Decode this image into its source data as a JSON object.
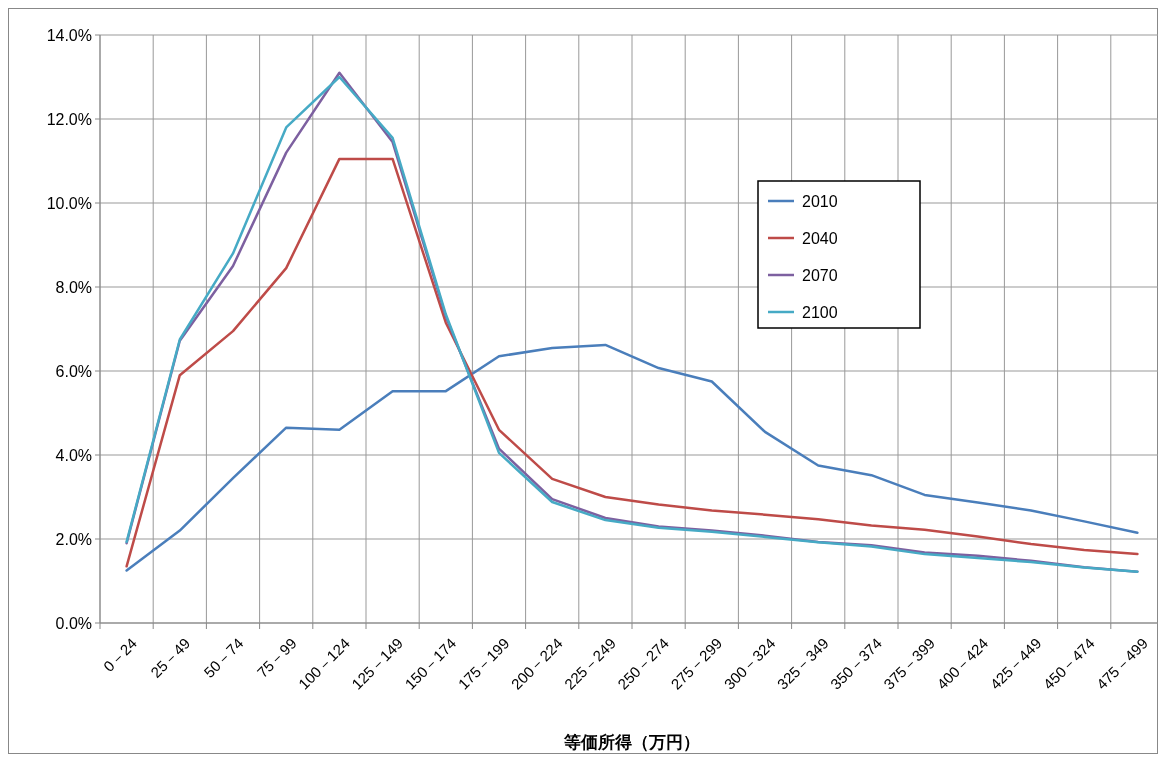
{
  "chart_data": {
    "type": "line",
    "xlabel": "等価所得（万円）",
    "categories": [
      "0－24",
      "25－49",
      "50－74",
      "75－99",
      "100－124",
      "125－149",
      "150－174",
      "175－199",
      "200－224",
      "225－249",
      "250－274",
      "275－299",
      "300－324",
      "325－349",
      "350－374",
      "375－399",
      "400－424",
      "425－449",
      "450－474",
      "475－499"
    ],
    "series": [
      {
        "name": "2010",
        "color": "#4a7ebb",
        "values": [
          1.25,
          2.2,
          3.45,
          4.65,
          4.6,
          5.52,
          5.52,
          6.35,
          6.55,
          6.62,
          6.07,
          5.75,
          4.55,
          3.75,
          3.52,
          3.05,
          2.87,
          2.68,
          2.42,
          2.15
        ]
      },
      {
        "name": "2040",
        "color": "#be4b48",
        "values": [
          1.35,
          5.9,
          6.95,
          8.45,
          11.05,
          11.05,
          7.15,
          4.6,
          3.43,
          3.0,
          2.82,
          2.68,
          2.58,
          2.47,
          2.32,
          2.22,
          2.06,
          1.88,
          1.74,
          1.64
        ]
      },
      {
        "name": "2070",
        "color": "#7d60a0",
        "values": [
          1.9,
          6.72,
          8.5,
          11.2,
          13.1,
          11.45,
          7.3,
          4.15,
          2.95,
          2.5,
          2.3,
          2.2,
          2.08,
          1.93,
          1.85,
          1.68,
          1.6,
          1.48,
          1.33,
          1.22
        ]
      },
      {
        "name": "2100",
        "color": "#46aac5",
        "values": [
          1.93,
          6.75,
          8.8,
          11.8,
          13.0,
          11.55,
          7.35,
          4.05,
          2.88,
          2.45,
          2.27,
          2.17,
          2.05,
          1.92,
          1.82,
          1.64,
          1.55,
          1.45,
          1.32,
          1.22
        ]
      }
    ],
    "ylim": [
      0,
      14
    ],
    "yticks": [
      {
        "value": 0,
        "label": "0.0%"
      },
      {
        "value": 2,
        "label": "2.0%"
      },
      {
        "value": 4,
        "label": "4.0%"
      },
      {
        "value": 6,
        "label": "6.0%"
      },
      {
        "value": 8,
        "label": "8.0%"
      },
      {
        "value": 10,
        "label": "10.0%"
      },
      {
        "value": 12,
        "label": "12.0%"
      },
      {
        "value": 14,
        "label": "14.0%"
      }
    ],
    "grid": true,
    "legend": "right",
    "marker": "none",
    "line_style": "solid"
  }
}
